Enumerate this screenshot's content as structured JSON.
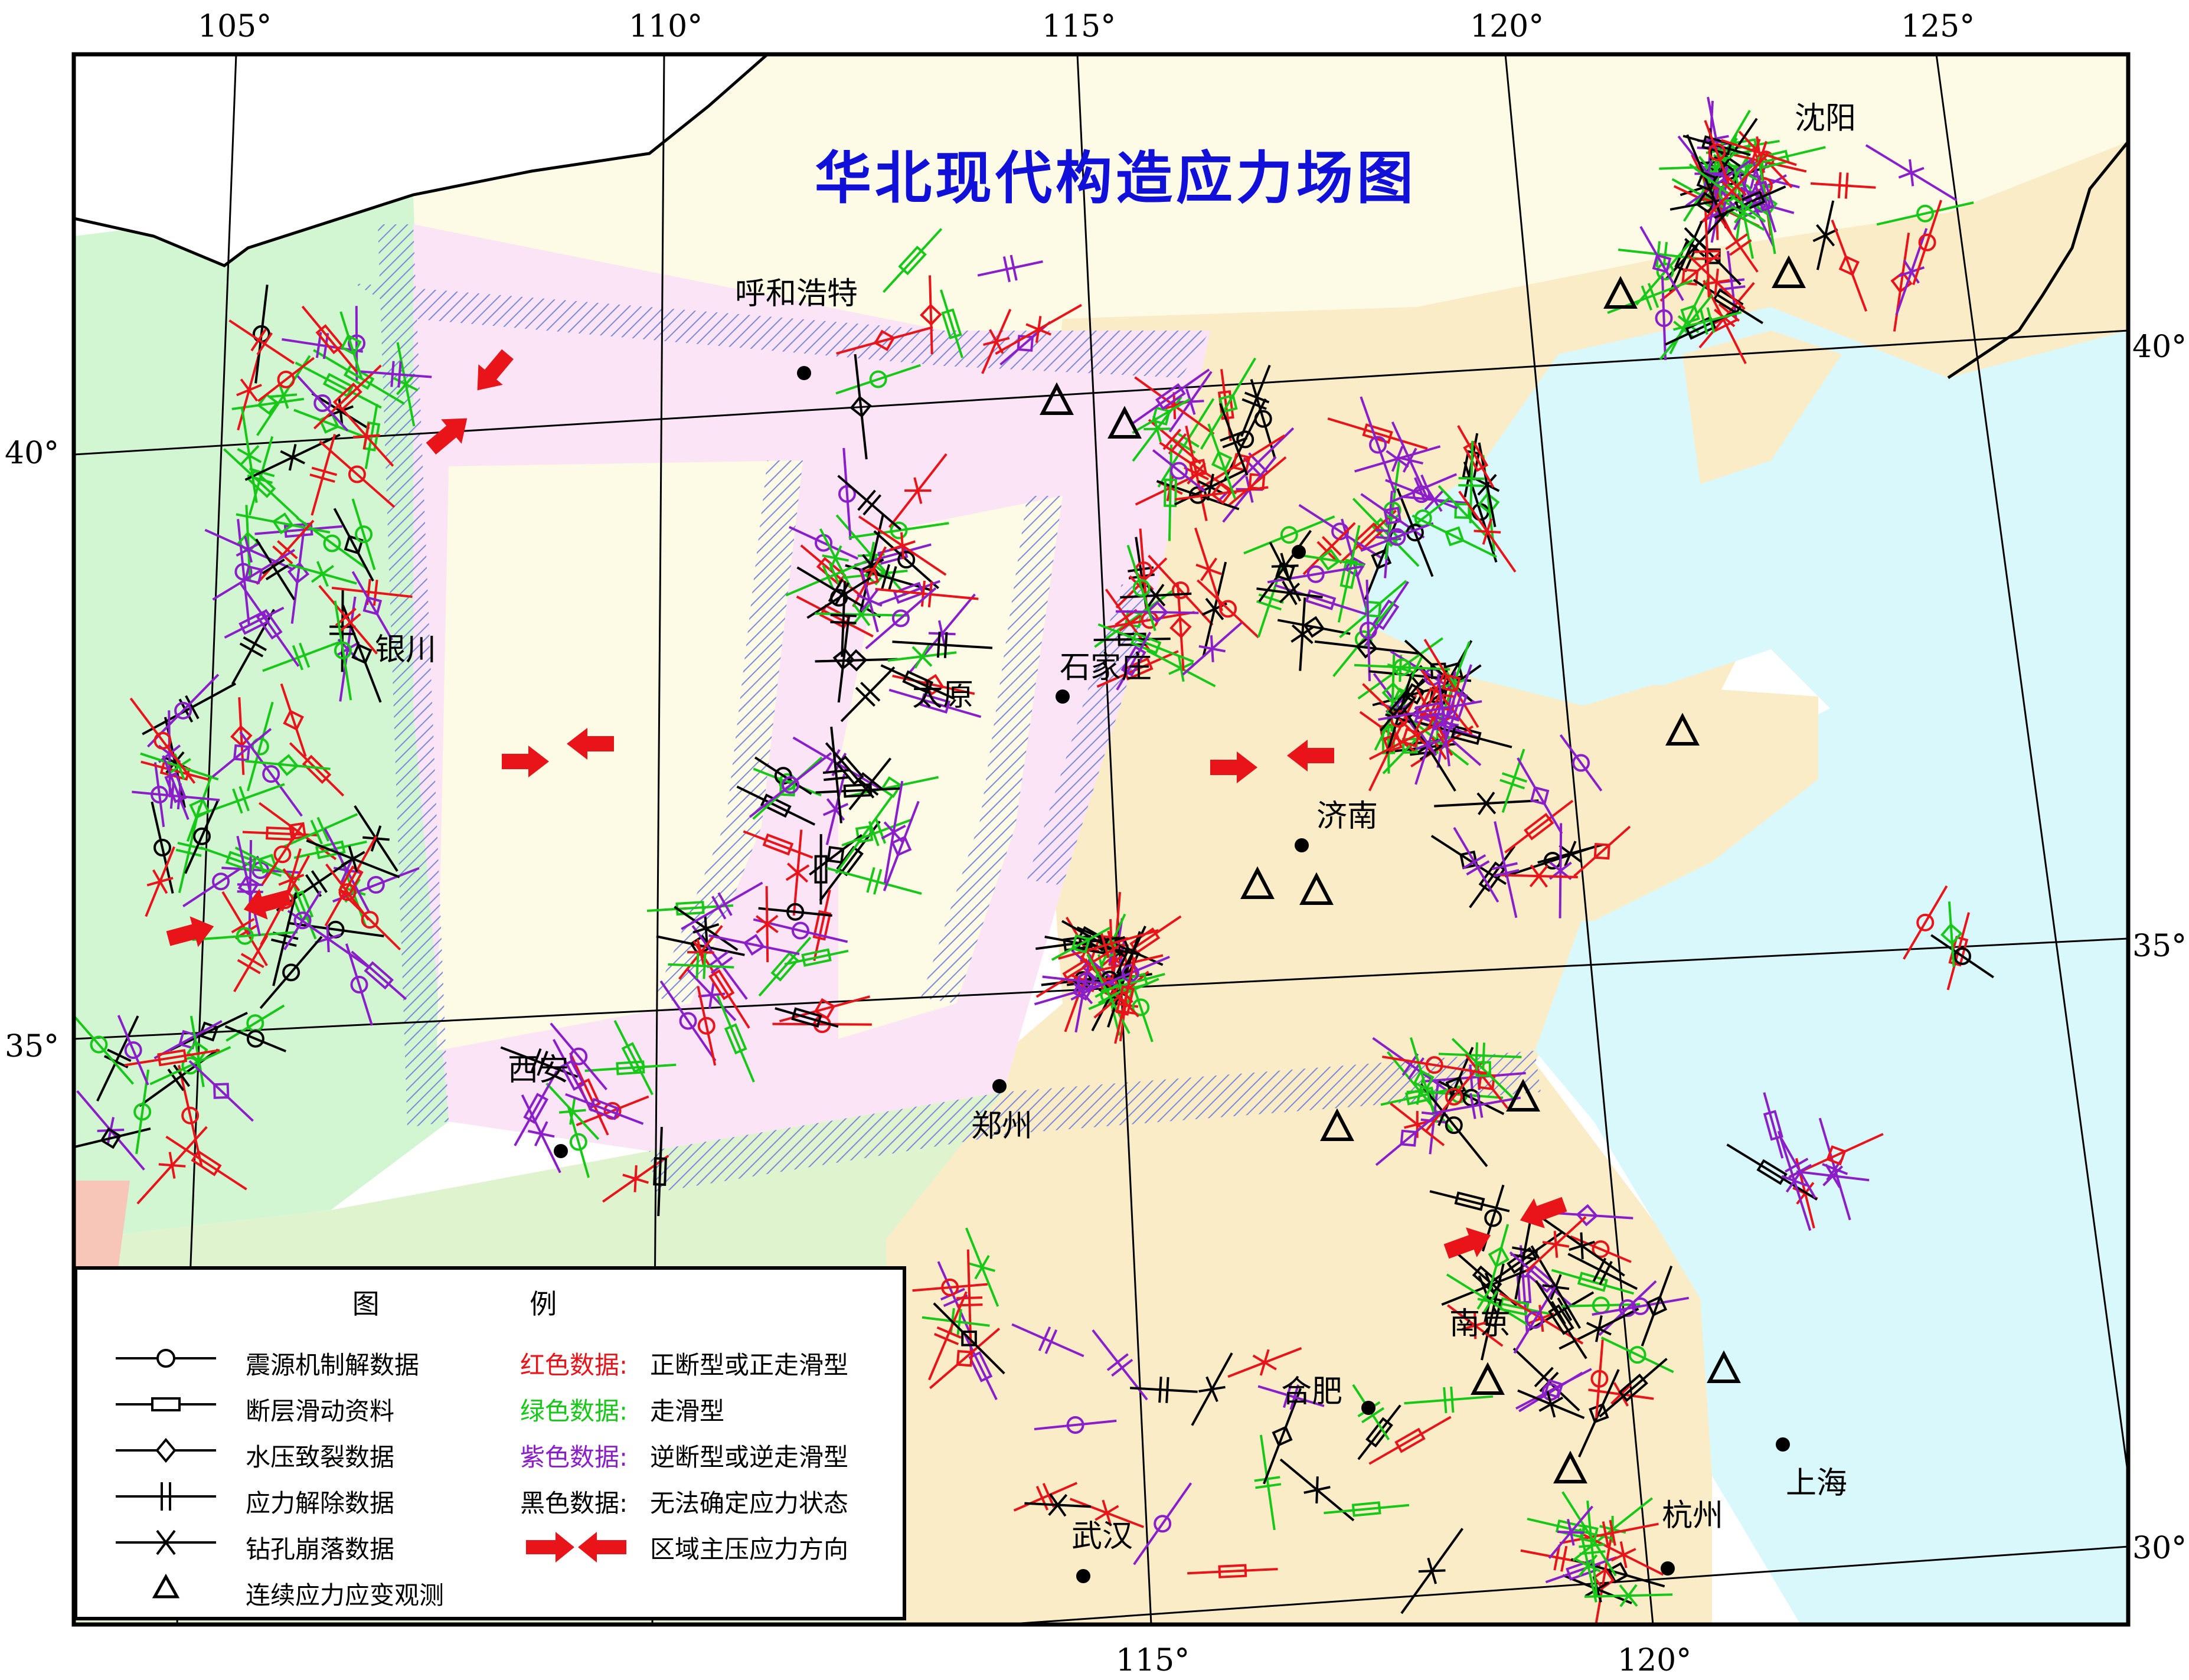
{
  "title": "华北现代构造应力场图",
  "longitude_labels_top": [
    "105°",
    "110°",
    "115°",
    "120°",
    "125°"
  ],
  "longitude_labels_bottom": [
    "115°",
    "120°"
  ],
  "latitude_labels_left": [
    "40°",
    "35°"
  ],
  "latitude_labels_right": [
    "40°",
    "35°",
    "30°"
  ],
  "cities": [
    {
      "name": "沈阳"
    },
    {
      "name": "呼和浩特"
    },
    {
      "name": "银川"
    },
    {
      "name": "太原"
    },
    {
      "name": "石家庄"
    },
    {
      "name": "济南"
    },
    {
      "name": "西安"
    },
    {
      "name": "郑州"
    },
    {
      "name": "南京"
    },
    {
      "name": "合肥"
    },
    {
      "name": "上海"
    },
    {
      "name": "杭州"
    },
    {
      "name": "武汉"
    }
  ],
  "legend": {
    "title": "图  例",
    "symbols": [
      {
        "icon": "circle-line-symbol",
        "label": "震源机制解数据"
      },
      {
        "icon": "rectangle-line-symbol",
        "label": "断层滑动资料"
      },
      {
        "icon": "diamond-line-symbol",
        "label": "水压致裂数据"
      },
      {
        "icon": "double-bar-line-symbol",
        "label": "应力解除数据"
      },
      {
        "icon": "x-line-symbol",
        "label": "钻孔崩落数据"
      },
      {
        "icon": "triangle-symbol",
        "label": "连续应力应变观测"
      }
    ],
    "colors": [
      {
        "key": "红色数据:",
        "label": "正断型或正走滑型",
        "color": "#e8141a"
      },
      {
        "key": "绿色数据:",
        "label": "走滑型",
        "color": "#18c818"
      },
      {
        "key": "紫色数据:",
        "label": "逆断型或逆走滑型",
        "color": "#8a1ec8"
      },
      {
        "key": "黑色数据:",
        "label": "无法确定应力状态",
        "color": "#000000"
      },
      {
        "key": "",
        "label": "区域主压应力方向",
        "color": "#e8141a"
      }
    ]
  },
  "colors": {
    "sea": "#d9f8fb",
    "land_east": "#fbecc8",
    "ordos": "#fdfbe6",
    "pink_belt": "#fbe4f6",
    "green_west": "#d2f5d2",
    "green_south": "#dff3cf",
    "salmon": "#f8c6b8",
    "hatch": "#7a8ad8",
    "title": "#1010d8"
  }
}
